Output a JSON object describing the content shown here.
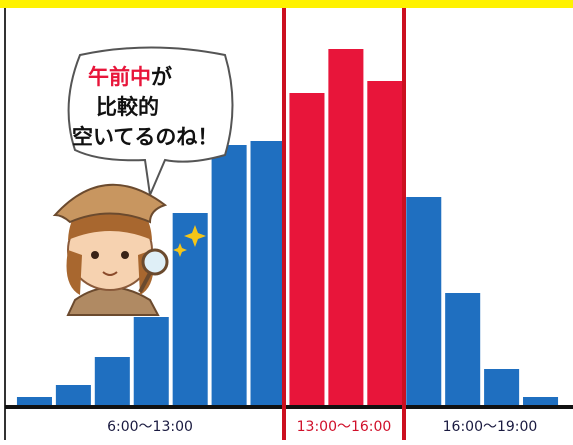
{
  "chart_data": {
    "type": "bar",
    "categories": [
      null,
      null,
      null,
      null,
      null,
      null,
      null,
      null,
      null,
      null,
      null,
      null,
      null,
      null
    ],
    "values": [
      2,
      5,
      12,
      22,
      48,
      65,
      66,
      78,
      89,
      81,
      52,
      28,
      9,
      2
    ],
    "colors": [
      "#1f6fc0",
      "#1f6fc0",
      "#1f6fc0",
      "#1f6fc0",
      "#1f6fc0",
      "#1f6fc0",
      "#1f6fc0",
      "#e8153a",
      "#e8153a",
      "#e8153a",
      "#1f6fc0",
      "#1f6fc0",
      "#1f6fc0",
      "#1f6fc0"
    ],
    "ylim": [
      0,
      100
    ],
    "periods": [
      {
        "label": "6:00〜13:00",
        "color": "#1a1a40"
      },
      {
        "label": "13:00〜16:00",
        "color": "#d0102a"
      },
      {
        "label": "16:00〜19:00",
        "color": "#1a1a40"
      }
    ],
    "annotation": [
      {
        "text": "午前中",
        "color": "#e8153a"
      },
      {
        "text": "が",
        "color": "#111111"
      },
      {
        "text": "比較的",
        "color": "#111111"
      },
      {
        "text": "空いてるのね！",
        "color": "#111111"
      }
    ]
  }
}
